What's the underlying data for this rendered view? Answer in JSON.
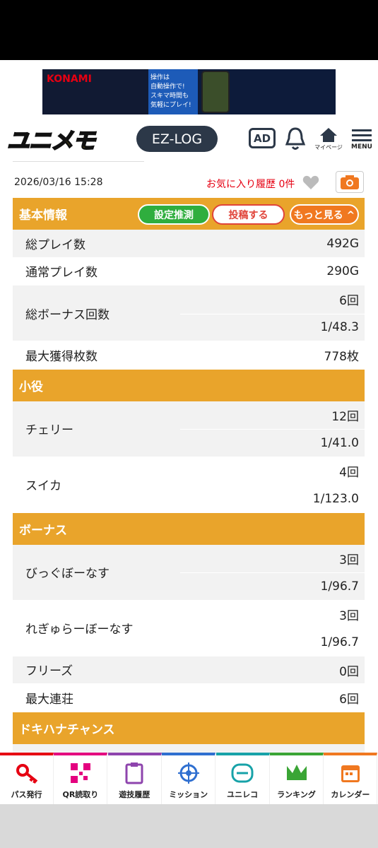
{
  "ad": {
    "brand": "KONAMI",
    "lines": [
      "操作は",
      "自動操作で!",
      "スキマ時間も",
      "気軽にプレイ!"
    ]
  },
  "header": {
    "logo": "ユニメモ",
    "ez_log": "EZ-LOG",
    "ad_button": "AD",
    "mypage": "マイページ",
    "menu": "MENU"
  },
  "datetime": "2026/03/16 15:28",
  "favorites": "お気に入り履歴 0件",
  "sections": [
    {
      "title": "基本情報",
      "buttons": [
        "設定推測",
        "投稿する",
        "もっと見る"
      ],
      "rows": [
        {
          "label": "総プレイ数",
          "values": [
            "492G"
          ]
        },
        {
          "label": "通常プレイ数",
          "values": [
            "290G"
          ]
        },
        {
          "label": "総ボーナス回数",
          "values": [
            "6回",
            "1/48.3"
          ]
        },
        {
          "label": "最大獲得枚数",
          "values": [
            "778枚"
          ]
        }
      ]
    },
    {
      "title": "小役",
      "rows": [
        {
          "label": "チェリー",
          "values": [
            "12回",
            "1/41.0"
          ]
        },
        {
          "label": "スイカ",
          "values": [
            "4回",
            "1/123.0"
          ]
        }
      ]
    },
    {
      "title": "ボーナス",
      "rows": [
        {
          "label": "びっぐぼーなす",
          "values": [
            "3回",
            "1/96.7"
          ]
        },
        {
          "label": "れぎゅらーぼーなす",
          "values": [
            "3回",
            "1/96.7"
          ]
        },
        {
          "label": "フリーズ",
          "values": [
            "0回"
          ]
        },
        {
          "label": "最大連荘",
          "values": [
            "6回"
          ]
        }
      ]
    },
    {
      "title": "ドキハナチャンス",
      "rows": []
    }
  ],
  "nav": [
    "パス発行",
    "QR読取り",
    "遊技履歴",
    "ミッション",
    "ユニレコ",
    "ランキング",
    "カレンダー"
  ]
}
